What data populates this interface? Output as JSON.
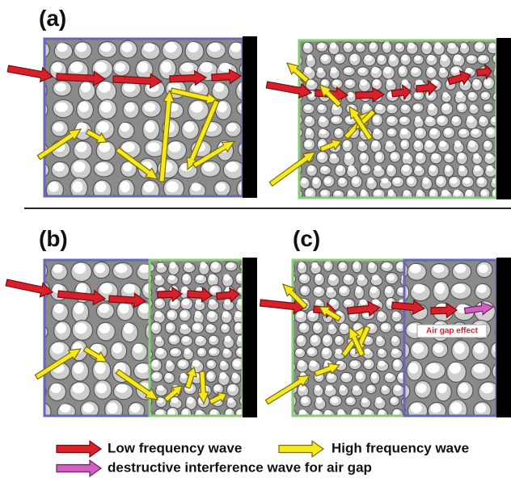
{
  "panels": [
    {
      "label": "(a)"
    },
    {
      "label": "(b)"
    },
    {
      "label": "(c)"
    }
  ],
  "annotation": "Air gap effect",
  "legend": [
    {
      "text": "Low frequency wave"
    },
    {
      "text": "High frequency wave"
    },
    {
      "text": "destructive interference wave for air gap"
    }
  ]
}
